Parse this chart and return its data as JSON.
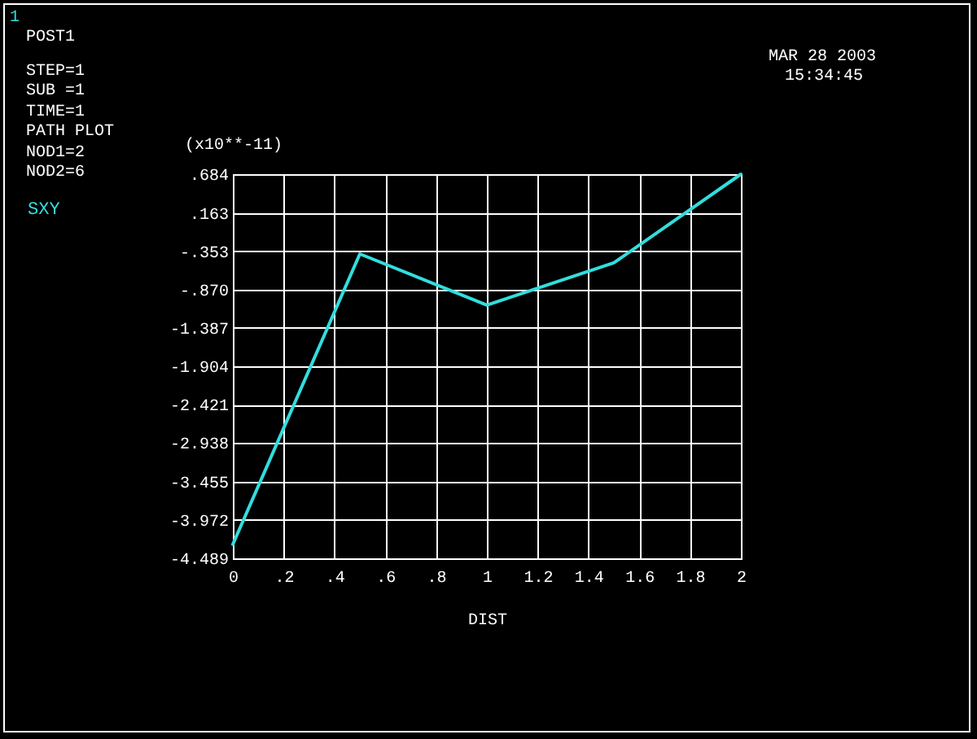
{
  "chart_data": {
    "type": "line",
    "annotations": [
      "1",
      "POST1",
      "STEP=1",
      "SUB =1",
      "TIME=1",
      "PATH PLOT",
      "NOD1=2",
      "NOD2=6",
      "MAR 28 2003",
      "15:34:45"
    ],
    "xlabel": "DIST",
    "ylabel": "(x10**-11)",
    "x": [
      0,
      0.5,
      1,
      1.5,
      2
    ],
    "series": [
      {
        "name": "SXY",
        "color": "#33dddd",
        "values": [
          -4.3,
          -0.39,
          -1.08,
          -0.51,
          0.684
        ]
      }
    ],
    "xlim": [
      0,
      2
    ],
    "ylim": [
      -4.489,
      0.684
    ],
    "xticks": [
      0,
      {
        "value": 0.2,
        "label": ".2"
      },
      {
        "value": 0.4,
        "label": ".4"
      },
      {
        "value": 0.6,
        "label": ".6"
      },
      {
        "value": 0.8,
        "label": ".8"
      },
      1,
      1.2,
      1.4,
      1.6,
      1.8,
      2
    ],
    "yticks": [
      {
        "value": 0.684,
        "label": ".684"
      },
      {
        "value": 0.163,
        "label": ".163"
      },
      {
        "value": -0.353,
        "label": "-.353"
      },
      {
        "value": -0.87,
        "label": "-.870"
      },
      -1.387,
      -1.904,
      -2.421,
      -2.938,
      -3.455,
      -3.972,
      -4.489
    ],
    "grid": true,
    "legend": "left",
    "marker": "none",
    "line_style": "solid"
  }
}
